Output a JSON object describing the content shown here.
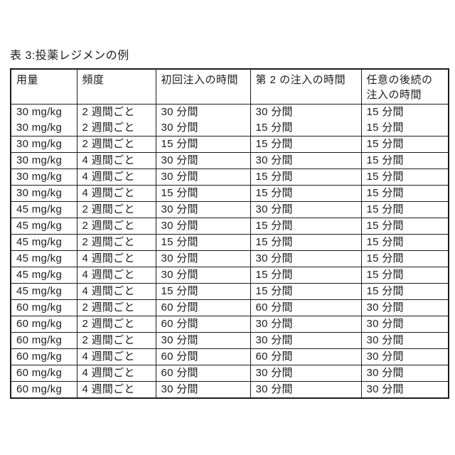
{
  "page": {
    "title": "表 3:投薬レジメンの例"
  },
  "table": {
    "headers": [
      "用量",
      "頻度",
      "初回注入の時間",
      "第 2 の注入の時間",
      "任意の後続の\n注入の時間"
    ],
    "rows": [
      [
        "30 mg/kg",
        "2 週間ごと",
        "30 分間",
        "30 分間",
        "15 分間"
      ],
      [
        "30 mg/kg",
        "2 週間ごと",
        "30 分間",
        "15 分間",
        "15 分間"
      ],
      [
        "30 mg/kg",
        "2 週間ごと",
        "15 分間",
        "15 分間",
        "15 分間"
      ],
      [
        "30 mg/kg",
        "4 週間ごと",
        "30 分間",
        "30 分間",
        "15 分間"
      ],
      [
        "30 mg/kg",
        "4 週間ごと",
        "30 分間",
        "15 分間",
        "15 分間"
      ],
      [
        "30 mg/kg",
        "4 週間ごと",
        "15 分間",
        "15 分間",
        "15 分間"
      ],
      [
        "45 mg/kg",
        "2 週間ごと",
        "30 分間",
        "30 分間",
        "15 分間"
      ],
      [
        "45 mg/kg",
        "2 週間ごと",
        "30 分間",
        "15 分間",
        "15 分間"
      ],
      [
        "45 mg/kg",
        "2 週間ごと",
        "15 分間",
        "15 分間",
        "15 分間"
      ],
      [
        "45 mg/kg",
        "4 週間ごと",
        "30 分間",
        "30 分間",
        "15 分間"
      ],
      [
        "45 mg/kg",
        "4 週間ごと",
        "30 分間",
        "15 分間",
        "15 分間"
      ],
      [
        "45 mg/kg",
        "4 週間ごと",
        "15 分間",
        "15 分間",
        "15 分間"
      ],
      [
        "60 mg/kg",
        "2 週間ごと",
        "60 分間",
        "60 分間",
        "30 分間"
      ],
      [
        "60 mg/kg",
        "2 週間ごと",
        "60 分間",
        "30 分間",
        "30 分間"
      ],
      [
        "60 mg/kg",
        "2 週間ごと",
        "30 分間",
        "30 分間",
        "30 分間"
      ],
      [
        "60 mg/kg",
        "4 週間ごと",
        "60 分間",
        "60 分間",
        "30 分間"
      ],
      [
        "60 mg/kg",
        "4 週間ごと",
        "60 分間",
        "30 分間",
        "30 分間"
      ],
      [
        "60 mg/kg",
        "4 週間ごと",
        "30 分間",
        "30 分間",
        "30 分間"
      ]
    ]
  },
  "colors": {
    "text": "#1c1c1c",
    "border": "#1c1c1c",
    "background": "#ffffff"
  }
}
